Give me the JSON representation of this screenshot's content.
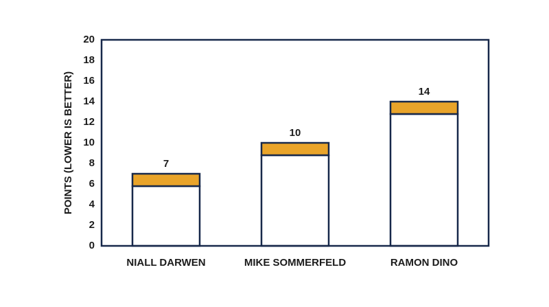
{
  "chart_data": {
    "type": "stacked_bar",
    "y_label": "POINTS (LOWER IS BETTER)",
    "categories": [
      "NIALL DARWEN",
      "MIKE SOMMERFELD",
      "RAMON DINO"
    ],
    "series": [
      {
        "color": "#ffffff",
        "values": [
          5.8,
          8.8,
          12.8
        ]
      },
      {
        "color": "#e9a42a",
        "values": [
          1.2,
          1.2,
          1.2
        ]
      }
    ],
    "totals": [
      7,
      10,
      14
    ],
    "ylim": [
      0,
      20
    ],
    "yticks": [
      0,
      2,
      4,
      6,
      8,
      10,
      12,
      14,
      16,
      18,
      20
    ],
    "grid": false
  }
}
